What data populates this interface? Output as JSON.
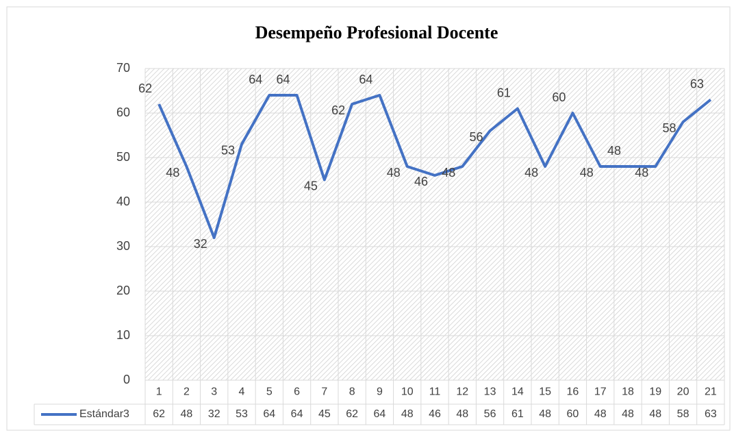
{
  "chart_data": {
    "type": "line",
    "title": "Desempeño Profesional Docente",
    "categories": [
      "1",
      "2",
      "3",
      "4",
      "5",
      "6",
      "7",
      "8",
      "9",
      "10",
      "11",
      "12",
      "13",
      "14",
      "15",
      "16",
      "17",
      "18",
      "19",
      "20",
      "21"
    ],
    "series": [
      {
        "name": "Estándar3",
        "color": "#4472c4",
        "values": [
          62,
          48,
          32,
          53,
          64,
          64,
          45,
          62,
          64,
          48,
          46,
          48,
          56,
          61,
          48,
          60,
          48,
          48,
          48,
          58,
          63
        ]
      }
    ],
    "ylim": [
      0,
      70
    ],
    "yticks": [
      0,
      10,
      20,
      30,
      40,
      50,
      60,
      70
    ],
    "grid": true,
    "legend": "bottom"
  }
}
